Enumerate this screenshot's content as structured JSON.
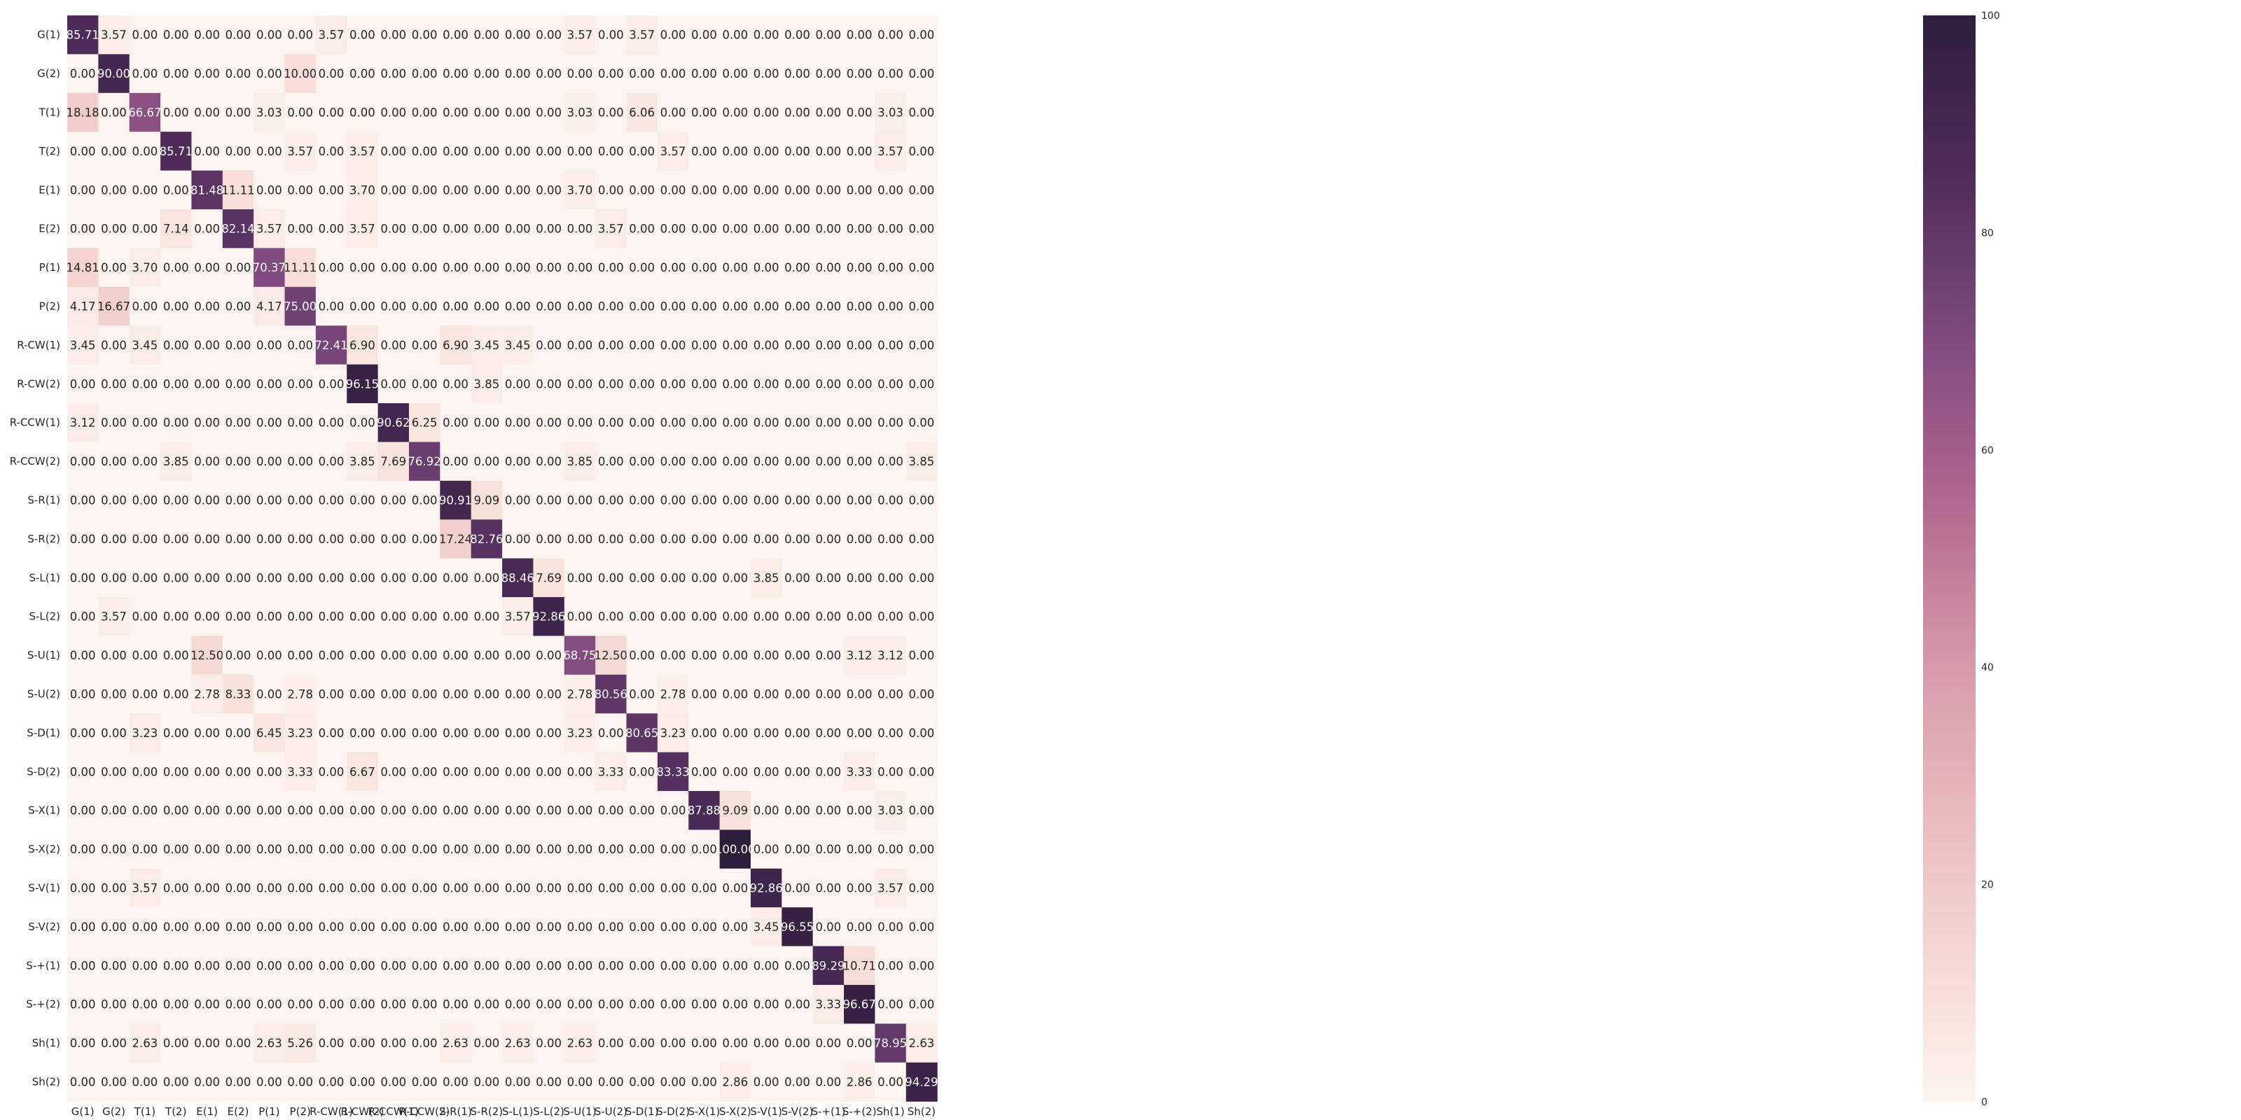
{
  "chart_data": {
    "type": "heatmap",
    "title": "",
    "xlabel": "",
    "ylabel": "",
    "value_format": "2 decimals",
    "colorbar": {
      "range": [
        0,
        100
      ],
      "ticks": [
        0,
        20,
        40,
        60,
        80,
        100
      ],
      "placement": "right",
      "color_low": "#fcf4f0",
      "color_mid": "#b3688f",
      "color_high": "#2e1e3b"
    },
    "row_labels": [
      "G(1)",
      "G(2)",
      "T(1)",
      "T(2)",
      "E(1)",
      "E(2)",
      "P(1)",
      "P(2)",
      "R-CW(1)",
      "R-CW(2)",
      "R-CCW(1)",
      "R-CCW(2)",
      "S-R(1)",
      "S-R(2)",
      "S-L(1)",
      "S-L(2)",
      "S-U(1)",
      "S-U(2)",
      "S-D(1)",
      "S-D(2)",
      "S-X(1)",
      "S-X(2)",
      "S-V(1)",
      "S-V(2)",
      "S-+(1)",
      "S-+(2)",
      "Sh(1)",
      "Sh(2)"
    ],
    "col_labels": [
      "G(1)",
      "G(2)",
      "T(1)",
      "T(2)",
      "E(1)",
      "E(2)",
      "P(1)",
      "P(2)",
      "R-CW(1)",
      "R-CW(2)",
      "R-CCW(1)",
      "R-CCW(2)",
      "S-R(1)",
      "S-R(2)",
      "S-L(1)",
      "S-L(2)",
      "S-U(1)",
      "S-U(2)",
      "S-D(1)",
      "S-D(2)",
      "S-X(1)",
      "S-X(2)",
      "S-V(1)",
      "S-V(2)",
      "S-+(1)",
      "S-+(2)",
      "Sh(1)",
      "Sh(2)"
    ],
    "values": [
      [
        85.71,
        3.57,
        0,
        0,
        0,
        0,
        0,
        0,
        3.57,
        0,
        0,
        0,
        0,
        0,
        0,
        0,
        3.57,
        0,
        3.57,
        0,
        0,
        0,
        0,
        0,
        0,
        0,
        0,
        0
      ],
      [
        0,
        90.0,
        0,
        0,
        0,
        0,
        0,
        10.0,
        0,
        0,
        0,
        0,
        0,
        0,
        0,
        0,
        0,
        0,
        0,
        0,
        0,
        0,
        0,
        0,
        0,
        0,
        0,
        0
      ],
      [
        18.18,
        0,
        66.67,
        0,
        0,
        0,
        3.03,
        0,
        0,
        0,
        0,
        0,
        0,
        0,
        0,
        0,
        3.03,
        0,
        6.06,
        0,
        0,
        0,
        0,
        0,
        0,
        0,
        3.03,
        0
      ],
      [
        0,
        0,
        0,
        85.71,
        0,
        0,
        0,
        3.57,
        0,
        3.57,
        0,
        0,
        0,
        0,
        0,
        0,
        0,
        0,
        0,
        3.57,
        0,
        0,
        0,
        0,
        0,
        0,
        3.57,
        0
      ],
      [
        0,
        0,
        0,
        0,
        81.48,
        11.11,
        0,
        0,
        0,
        3.7,
        0,
        0,
        0,
        0,
        0,
        0,
        3.7,
        0,
        0,
        0,
        0,
        0,
        0,
        0,
        0,
        0,
        0,
        0
      ],
      [
        0,
        0,
        0,
        7.14,
        0,
        82.14,
        3.57,
        0,
        0,
        3.57,
        0,
        0,
        0,
        0,
        0,
        0,
        0,
        3.57,
        0,
        0,
        0,
        0,
        0,
        0,
        0,
        0,
        0,
        0
      ],
      [
        14.81,
        0,
        3.7,
        0,
        0,
        0,
        70.37,
        11.11,
        0,
        0,
        0,
        0,
        0,
        0,
        0,
        0,
        0,
        0,
        0,
        0,
        0,
        0,
        0,
        0,
        0,
        0,
        0,
        0
      ],
      [
        4.17,
        16.67,
        0,
        0,
        0,
        0,
        4.17,
        75.0,
        0,
        0,
        0,
        0,
        0,
        0,
        0,
        0,
        0,
        0,
        0,
        0,
        0,
        0,
        0,
        0,
        0,
        0,
        0,
        0
      ],
      [
        3.45,
        0,
        3.45,
        0,
        0,
        0,
        0,
        0,
        72.41,
        6.9,
        0,
        0,
        6.9,
        3.45,
        3.45,
        0,
        0,
        0,
        0,
        0,
        0,
        0,
        0,
        0,
        0,
        0,
        0,
        0
      ],
      [
        0,
        0,
        0,
        0,
        0,
        0,
        0,
        0,
        0,
        96.15,
        0,
        0,
        0,
        3.85,
        0,
        0,
        0,
        0,
        0,
        0,
        0,
        0,
        0,
        0,
        0,
        0,
        0,
        0
      ],
      [
        3.12,
        0,
        0,
        0,
        0,
        0,
        0,
        0,
        0,
        0,
        90.62,
        6.25,
        0,
        0,
        0,
        0,
        0,
        0,
        0,
        0,
        0,
        0,
        0,
        0,
        0,
        0,
        0,
        0
      ],
      [
        0,
        0,
        0,
        3.85,
        0,
        0,
        0,
        0,
        0,
        3.85,
        7.69,
        76.92,
        0,
        0,
        0,
        0,
        3.85,
        0,
        0,
        0,
        0,
        0,
        0,
        0,
        0,
        0,
        0,
        3.85
      ],
      [
        0,
        0,
        0,
        0,
        0,
        0,
        0,
        0,
        0,
        0,
        0,
        0,
        90.91,
        9.09,
        0,
        0,
        0,
        0,
        0,
        0,
        0,
        0,
        0,
        0,
        0,
        0,
        0,
        0
      ],
      [
        0,
        0,
        0,
        0,
        0,
        0,
        0,
        0,
        0,
        0,
        0,
        0,
        17.24,
        82.76,
        0,
        0,
        0,
        0,
        0,
        0,
        0,
        0,
        0,
        0,
        0,
        0,
        0,
        0
      ],
      [
        0,
        0,
        0,
        0,
        0,
        0,
        0,
        0,
        0,
        0,
        0,
        0,
        0,
        0,
        88.46,
        7.69,
        0,
        0,
        0,
        0,
        0,
        0,
        3.85,
        0,
        0,
        0,
        0,
        0
      ],
      [
        0,
        3.57,
        0,
        0,
        0,
        0,
        0,
        0,
        0,
        0,
        0,
        0,
        0,
        0,
        3.57,
        92.86,
        0,
        0,
        0,
        0,
        0,
        0,
        0,
        0,
        0,
        0,
        0,
        0
      ],
      [
        0,
        0,
        0,
        0,
        12.5,
        0,
        0,
        0,
        0,
        0,
        0,
        0,
        0,
        0,
        0,
        0,
        68.75,
        12.5,
        0,
        0,
        0,
        0,
        0,
        0,
        0,
        3.12,
        3.12,
        0
      ],
      [
        0,
        0,
        0,
        0,
        2.78,
        8.33,
        0,
        2.78,
        0,
        0,
        0,
        0,
        0,
        0,
        0,
        0,
        2.78,
        80.56,
        0,
        2.78,
        0,
        0,
        0,
        0,
        0,
        0,
        0,
        0
      ],
      [
        0,
        0,
        3.23,
        0,
        0,
        0,
        6.45,
        3.23,
        0,
        0,
        0,
        0,
        0,
        0,
        0,
        0,
        3.23,
        0,
        80.65,
        3.23,
        0,
        0,
        0,
        0,
        0,
        0,
        0,
        0
      ],
      [
        0,
        0,
        0,
        0,
        0,
        0,
        0,
        3.33,
        0,
        6.67,
        0,
        0,
        0,
        0,
        0,
        0,
        0,
        3.33,
        0,
        83.33,
        0,
        0,
        0,
        0,
        0,
        3.33,
        0,
        0
      ],
      [
        0,
        0,
        0,
        0,
        0,
        0,
        0,
        0,
        0,
        0,
        0,
        0,
        0,
        0,
        0,
        0,
        0,
        0,
        0,
        0,
        87.88,
        9.09,
        0,
        0,
        0,
        0,
        3.03,
        0
      ],
      [
        0,
        0,
        0,
        0,
        0,
        0,
        0,
        0,
        0,
        0,
        0,
        0,
        0,
        0,
        0,
        0,
        0,
        0,
        0,
        0,
        0,
        100.0,
        0,
        0,
        0,
        0,
        0,
        0
      ],
      [
        0,
        0,
        3.57,
        0,
        0,
        0,
        0,
        0,
        0,
        0,
        0,
        0,
        0,
        0,
        0,
        0,
        0,
        0,
        0,
        0,
        0,
        0,
        92.86,
        0,
        0,
        0,
        3.57,
        0
      ],
      [
        0,
        0,
        0,
        0,
        0,
        0,
        0,
        0,
        0,
        0,
        0,
        0,
        0,
        0,
        0,
        0,
        0,
        0,
        0,
        0,
        0,
        0,
        3.45,
        96.55,
        0,
        0,
        0,
        0
      ],
      [
        0,
        0,
        0,
        0,
        0,
        0,
        0,
        0,
        0,
        0,
        0,
        0,
        0,
        0,
        0,
        0,
        0,
        0,
        0,
        0,
        0,
        0,
        0,
        0,
        89.29,
        10.71,
        0,
        0
      ],
      [
        0,
        0,
        0,
        0,
        0,
        0,
        0,
        0,
        0,
        0,
        0,
        0,
        0,
        0,
        0,
        0,
        0,
        0,
        0,
        0,
        0,
        0,
        0,
        0,
        3.33,
        96.67,
        0,
        0
      ],
      [
        0,
        0,
        2.63,
        0,
        0,
        0,
        2.63,
        5.26,
        0,
        0,
        0,
        0,
        2.63,
        0,
        2.63,
        0,
        2.63,
        0,
        0,
        0,
        0,
        0,
        0,
        0,
        0,
        0,
        78.95,
        2.63
      ],
      [
        0,
        0,
        0,
        0,
        0,
        0,
        0,
        0,
        0,
        0,
        0,
        0,
        0,
        0,
        0,
        0,
        0,
        0,
        0,
        0,
        0,
        2.86,
        0,
        0,
        0,
        2.86,
        0,
        94.29
      ]
    ]
  }
}
